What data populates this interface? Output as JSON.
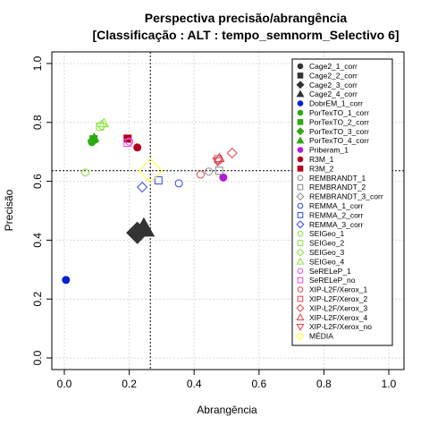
{
  "chart_data": {
    "type": "scatter",
    "title": "Perspectiva precisão/abrangência",
    "subtitle": "[Classificação : ALT : tempo_semnorm_Selectivo 6]",
    "xlabel": "Abrangência",
    "ylabel": "Precisão",
    "xlim": [
      0,
      1
    ],
    "ylim": [
      0,
      1
    ],
    "xticks": [
      "0.0",
      "0.2",
      "0.4",
      "0.6",
      "0.8",
      "1.0"
    ],
    "yticks": [
      "0.0",
      "0.2",
      "0.4",
      "0.6",
      "0.8",
      "1.0"
    ],
    "grid": true,
    "legend_position": "top-right",
    "reference_lines": {
      "x": 0.265,
      "y": 0.636
    },
    "series": [
      {
        "name": "Cage2_1_corr",
        "color": "#333333",
        "marker": "circle",
        "filled": true,
        "points": []
      },
      {
        "name": "Cage2_2_corr",
        "color": "#333333",
        "marker": "square",
        "filled": true,
        "points": []
      },
      {
        "name": "Cage2_3_corr",
        "color": "#333333",
        "marker": "diamond",
        "filled": true,
        "points": [
          [
            0.225,
            0.425
          ]
        ],
        "size": 2.2
      },
      {
        "name": "Cage2_4_corr",
        "color": "#333333",
        "marker": "triangle",
        "filled": true,
        "points": [
          [
            0.245,
            0.44
          ]
        ],
        "size": 2.2
      },
      {
        "name": "DobrEM_1_corr",
        "color": "#0a1fd6",
        "marker": "circle",
        "filled": true,
        "points": [
          [
            0.005,
            0.265
          ]
        ]
      },
      {
        "name": "PorTexTO_1_corr",
        "color": "#2eaa14",
        "marker": "circle",
        "filled": true,
        "points": [
          [
            0.085,
            0.733
          ]
        ]
      },
      {
        "name": "PorTexTO_2_corr",
        "color": "#2eaa14",
        "marker": "square",
        "filled": true,
        "points": [
          [
            0.09,
            0.743
          ]
        ]
      },
      {
        "name": "PorTexTO_3_corr",
        "color": "#2eaa14",
        "marker": "diamond",
        "filled": true,
        "points": [
          [
            0.087,
            0.738
          ]
        ]
      },
      {
        "name": "PorTexTO_4_corr",
        "color": "#2eaa14",
        "marker": "triangle",
        "filled": true,
        "points": [
          [
            0.092,
            0.747
          ]
        ]
      },
      {
        "name": "Priberam_1",
        "color": "#b31ad9",
        "marker": "circle",
        "filled": true,
        "points": [
          [
            0.49,
            0.613
          ]
        ]
      },
      {
        "name": "R3M_1",
        "color": "#b3001b",
        "marker": "circle",
        "filled": true,
        "points": [
          [
            0.225,
            0.715
          ]
        ]
      },
      {
        "name": "R3M_2",
        "color": "#b3001b",
        "marker": "square",
        "filled": true,
        "points": [
          [
            0.195,
            0.745
          ]
        ]
      },
      {
        "name": "REMBRANDT_1",
        "color": "#888888",
        "marker": "circle",
        "filled": false,
        "points": [
          [
            0.445,
            0.633
          ]
        ]
      },
      {
        "name": "REMBRANDT_2",
        "color": "#888888",
        "marker": "square",
        "filled": false,
        "points": [
          [
            0.477,
            0.636
          ]
        ]
      },
      {
        "name": "REMBRANDT_3_corr",
        "color": "#888888",
        "marker": "diamond",
        "filled": false,
        "points": [
          [
            0.476,
            0.672
          ]
        ]
      },
      {
        "name": "REMMA_1_corr",
        "color": "#2f45e6",
        "marker": "circle",
        "filled": false,
        "points": [
          [
            0.353,
            0.593
          ]
        ]
      },
      {
        "name": "REMMA_2_corr",
        "color": "#2f45e6",
        "marker": "square",
        "filled": false,
        "points": [
          [
            0.29,
            0.603
          ]
        ]
      },
      {
        "name": "REMMA_3_corr",
        "color": "#2f45e6",
        "marker": "diamond",
        "filled": false,
        "points": [
          [
            0.24,
            0.58
          ]
        ]
      },
      {
        "name": "SEIGeo_1",
        "color": "#86e23a",
        "marker": "circle",
        "filled": false,
        "points": [
          [
            0.065,
            0.63
          ]
        ]
      },
      {
        "name": "SEIGeo_2",
        "color": "#86e23a",
        "marker": "square",
        "filled": false,
        "points": [
          [
            0.11,
            0.786
          ]
        ]
      },
      {
        "name": "SEIGeo_3",
        "color": "#86e23a",
        "marker": "diamond",
        "filled": false,
        "points": [
          [
            0.115,
            0.79
          ]
        ]
      },
      {
        "name": "SEIGeo_4",
        "color": "#86e23a",
        "marker": "triangle",
        "filled": false,
        "points": [
          [
            0.122,
            0.797
          ]
        ]
      },
      {
        "name": "SeRELeP_1",
        "color": "#e84be0",
        "marker": "circle",
        "filled": false,
        "points": [
          [
            0.2,
            0.735
          ]
        ]
      },
      {
        "name": "SeRELeP_no",
        "color": "#e84be0",
        "marker": "square",
        "filled": false,
        "points": [
          [
            0.195,
            0.731
          ]
        ]
      },
      {
        "name": "XIP-L2F/Xerox_1",
        "color": "#e8404a",
        "marker": "circle",
        "filled": false,
        "points": [
          [
            0.42,
            0.623
          ]
        ]
      },
      {
        "name": "XIP-L2F/Xerox_2",
        "color": "#e8404a",
        "marker": "square",
        "filled": false,
        "points": [
          [
            0.474,
            0.675
          ]
        ]
      },
      {
        "name": "XIP-L2F/Xerox_3",
        "color": "#e8404a",
        "marker": "diamond",
        "filled": false,
        "points": [
          [
            0.517,
            0.696
          ]
        ]
      },
      {
        "name": "XIP-L2F/Xerox_4",
        "color": "#e8404a",
        "marker": "triangle",
        "filled": false,
        "points": [
          [
            0.478,
            0.679
          ]
        ]
      },
      {
        "name": "XIP-L2F/Xerox_no",
        "color": "#e8404a",
        "marker": "triangle-down",
        "filled": false,
        "points": [
          [
            0.472,
            0.668
          ]
        ]
      },
      {
        "name": "MÉDIA",
        "color": "#ffff33",
        "marker": "diamond",
        "filled": false,
        "points": [
          [
            0.265,
            0.636
          ]
        ],
        "size": 2.4
      }
    ]
  }
}
